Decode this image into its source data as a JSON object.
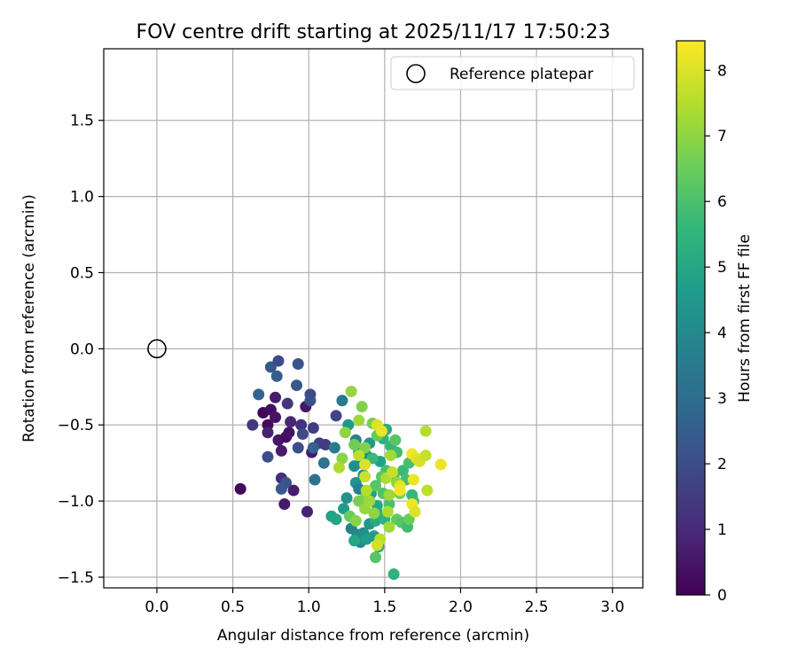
{
  "chart_data": {
    "type": "scatter",
    "title": "FOV centre drift starting at 2025/11/17 17:50:23",
    "xlabel": "Angular distance from reference (arcmin)",
    "ylabel": "Rotation from reference (arcmin)",
    "xlim": [
      -0.35,
      3.2
    ],
    "ylim": [
      -1.57,
      1.97
    ],
    "xticks": [
      0.0,
      0.5,
      1.0,
      1.5,
      2.0,
      2.5,
      3.0
    ],
    "xtick_labels": [
      "0.0",
      "0.5",
      "1.0",
      "1.5",
      "2.0",
      "2.5",
      "3.0"
    ],
    "yticks": [
      -1.5,
      -1.0,
      -0.5,
      0.0,
      0.5,
      1.0,
      1.5
    ],
    "ytick_labels": [
      "−1.5",
      "−1.0",
      "−0.5",
      "0.0",
      "0.5",
      "1.0",
      "1.5"
    ],
    "grid": true,
    "legend": {
      "position": "top-right",
      "entries": [
        "Reference platepar"
      ]
    },
    "reference": {
      "x": 0.0,
      "y": 0.0,
      "label": "Reference platepar"
    },
    "colorbar": {
      "label": "Hours from first FF file",
      "colormap": "viridis",
      "range": [
        0,
        8.45
      ],
      "ticks": [
        0,
        1,
        2,
        3,
        4,
        5,
        6,
        7,
        8
      ],
      "tick_labels": [
        "0",
        "1",
        "2",
        "3",
        "4",
        "5",
        "6",
        "7",
        "8"
      ],
      "stops": [
        "#440154",
        "#482878",
        "#3e4989",
        "#31688e",
        "#26828e",
        "#1f9e89",
        "#35b779",
        "#6ece58",
        "#b5de2b",
        "#fde725"
      ]
    },
    "points": [
      [
        0.55,
        -0.92,
        0.2
      ],
      [
        0.7,
        -0.42,
        0.1
      ],
      [
        0.75,
        -0.4,
        0.3
      ],
      [
        0.73,
        -0.5,
        0.2
      ],
      [
        0.78,
        -0.45,
        0.4
      ],
      [
        0.8,
        -0.6,
        0.5
      ],
      [
        0.82,
        -0.67,
        0.6
      ],
      [
        0.85,
        -0.58,
        0.3
      ],
      [
        0.87,
        -0.55,
        0.4
      ],
      [
        0.9,
        -0.93,
        0.7
      ],
      [
        0.84,
        -1.02,
        0.6
      ],
      [
        0.99,
        -1.07,
        0.8
      ],
      [
        0.98,
        -0.38,
        0.5
      ],
      [
        1.02,
        -0.68,
        0.6
      ],
      [
        0.78,
        -0.32,
        0.6
      ],
      [
        0.73,
        -0.55,
        0.8
      ],
      [
        0.88,
        -0.48,
        0.9
      ],
      [
        0.82,
        -0.85,
        1.1
      ],
      [
        0.95,
        -0.5,
        1.2
      ],
      [
        0.63,
        -0.5,
        1.4
      ],
      [
        0.86,
        -0.36,
        1.3
      ],
      [
        1.03,
        -0.52,
        1.5
      ],
      [
        1.07,
        -0.62,
        1.6
      ],
      [
        1.11,
        -0.63,
        1.5
      ],
      [
        1.18,
        -0.44,
        1.8
      ],
      [
        0.96,
        -0.56,
        1.9
      ],
      [
        0.93,
        -0.65,
        2.0
      ],
      [
        0.85,
        -0.88,
        2.2
      ],
      [
        0.82,
        -0.92,
        2.4
      ],
      [
        0.73,
        -0.71,
        2.1
      ],
      [
        0.8,
        -0.08,
        1.9
      ],
      [
        0.93,
        -0.1,
        2.2
      ],
      [
        0.75,
        -0.12,
        2.3
      ],
      [
        0.79,
        -0.18,
        2.5
      ],
      [
        0.67,
        -0.3,
        2.7
      ],
      [
        0.92,
        -0.24,
        2.4
      ],
      [
        1.01,
        -0.3,
        2.0
      ],
      [
        1.01,
        -0.34,
        2.1
      ],
      [
        1.03,
        -0.65,
        2.6
      ],
      [
        1.04,
        -0.86,
        3.2
      ],
      [
        1.1,
        -0.75,
        3.3
      ],
      [
        1.17,
        -0.65,
        3.5
      ],
      [
        1.22,
        -0.34,
        3.4
      ],
      [
        1.26,
        -0.5,
        4.5
      ],
      [
        1.31,
        -0.6,
        3.6
      ],
      [
        1.33,
        -0.68,
        3.9
      ],
      [
        1.35,
        -0.75,
        4.0
      ],
      [
        1.3,
        -0.77,
        4.2
      ],
      [
        1.36,
        -0.83,
        4.1
      ],
      [
        1.31,
        -0.88,
        4.4
      ],
      [
        1.33,
        -0.92,
        3.7
      ],
      [
        1.25,
        -0.98,
        4.3
      ],
      [
        1.23,
        -1.05,
        4.6
      ],
      [
        1.15,
        -1.1,
        4.8
      ],
      [
        1.18,
        -1.12,
        4.9
      ],
      [
        1.28,
        -1.18,
        3.8
      ],
      [
        1.32,
        -1.22,
        4.0
      ],
      [
        1.34,
        -1.27,
        4.1
      ],
      [
        1.36,
        -1.21,
        4.2
      ],
      [
        1.4,
        -1.15,
        4.4
      ],
      [
        1.43,
        -1.23,
        4.6
      ],
      [
        1.38,
        -1.25,
        4.7
      ],
      [
        1.3,
        -1.26,
        5.0
      ],
      [
        1.46,
        -1.3,
        5.2
      ],
      [
        1.44,
        -1.37,
        6.2
      ],
      [
        1.56,
        -1.48,
        5.4
      ],
      [
        1.41,
        -0.95,
        4.8
      ],
      [
        1.45,
        -1.03,
        5.0
      ],
      [
        1.47,
        -1.09,
        5.3
      ],
      [
        1.44,
        -1.13,
        5.1
      ],
      [
        1.5,
        -1.12,
        5.4
      ],
      [
        1.4,
        -0.62,
        4.5
      ],
      [
        1.38,
        -0.7,
        4.3
      ],
      [
        1.47,
        -0.74,
        4.8
      ],
      [
        1.49,
        -0.59,
        5.5
      ],
      [
        1.51,
        -0.53,
        5.2
      ],
      [
        1.54,
        -0.64,
        5.6
      ],
      [
        1.58,
        -0.68,
        5.8
      ],
      [
        1.62,
        -0.8,
        5.7
      ],
      [
        1.64,
        -0.86,
        5.9
      ],
      [
        1.66,
        -0.75,
        6.0
      ],
      [
        1.56,
        -0.84,
        6.1
      ],
      [
        1.51,
        -0.8,
        5.9
      ],
      [
        1.48,
        -0.84,
        6.3
      ],
      [
        1.42,
        -0.72,
        5.7
      ],
      [
        1.44,
        -0.9,
        6.2
      ],
      [
        1.49,
        -0.95,
        6.1
      ],
      [
        1.53,
        -1.02,
        6.0
      ],
      [
        1.58,
        -1.12,
        6.4
      ],
      [
        1.61,
        -1.14,
        6.2
      ],
      [
        1.65,
        -1.17,
        5.8
      ],
      [
        1.66,
        -1.12,
        6.5
      ],
      [
        1.69,
        -1.0,
        6.0
      ],
      [
        1.68,
        -0.96,
        5.6
      ],
      [
        1.6,
        -0.95,
        6.6
      ],
      [
        1.57,
        -0.6,
        6.2
      ],
      [
        1.45,
        -0.57,
        6.4
      ],
      [
        1.42,
        -0.49,
        6.7
      ],
      [
        1.35,
        -0.38,
        6.8
      ],
      [
        1.28,
        -0.28,
        7.1
      ],
      [
        1.24,
        -0.55,
        7.0
      ],
      [
        1.22,
        -0.72,
        6.9
      ],
      [
        1.2,
        -0.78,
        7.4
      ],
      [
        1.3,
        -0.63,
        6.6
      ],
      [
        1.37,
        -0.65,
        6.8
      ],
      [
        1.33,
        -0.47,
        7.2
      ],
      [
        1.37,
        -0.98,
        7.0
      ],
      [
        1.33,
        -1.0,
        6.7
      ],
      [
        1.27,
        -1.1,
        6.5
      ],
      [
        1.31,
        -1.13,
        6.9
      ],
      [
        1.37,
        -1.05,
        7.1
      ],
      [
        1.43,
        -1.08,
        7.0
      ],
      [
        1.4,
        -1.0,
        7.2
      ],
      [
        1.38,
        -0.93,
        7.5
      ],
      [
        1.37,
        -0.84,
        7.8
      ],
      [
        1.33,
        -0.7,
        7.6
      ],
      [
        1.37,
        -0.76,
        8.0
      ],
      [
        1.45,
        -0.5,
        8.0
      ],
      [
        1.48,
        -0.54,
        8.2
      ],
      [
        1.54,
        -0.7,
        7.3
      ],
      [
        1.58,
        -0.88,
        7.0
      ],
      [
        1.53,
        -0.96,
        7.2
      ],
      [
        1.52,
        -1.07,
        7.4
      ],
      [
        1.53,
        -1.17,
        7.2
      ],
      [
        1.47,
        -1.25,
        7.6
      ],
      [
        1.45,
        -1.29,
        7.9
      ],
      [
        1.6,
        -0.9,
        8.1
      ],
      [
        1.6,
        -0.93,
        8.3
      ],
      [
        1.69,
        -0.86,
        8.2
      ],
      [
        1.68,
        -0.69,
        8.3
      ],
      [
        1.71,
        -0.72,
        8.1
      ],
      [
        1.73,
        -0.74,
        7.9
      ],
      [
        1.77,
        -0.7,
        7.7
      ],
      [
        1.87,
        -0.76,
        8.2
      ],
      [
        1.78,
        -0.93,
        7.6
      ],
      [
        1.68,
        -1.02,
        8.3
      ],
      [
        1.7,
        -1.07,
        8.0
      ],
      [
        1.77,
        -0.54,
        7.5
      ],
      [
        1.51,
        -0.85,
        7.4
      ],
      [
        1.55,
        -0.81,
        7.7
      ]
    ]
  }
}
